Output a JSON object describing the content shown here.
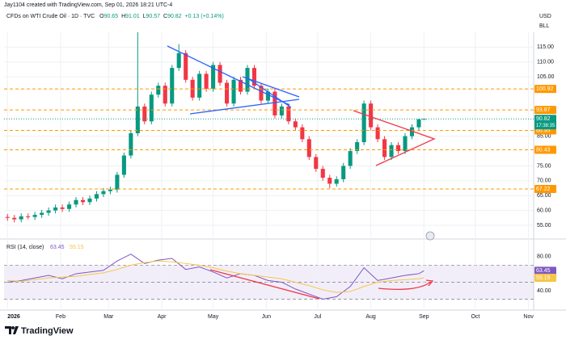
{
  "header": {
    "author": "Jay1104 created with TradingView.com, Sep 01, 2026 18:21 UTC-4",
    "symbol": "CFDs on WTI Crude Oil · 1D · TVC",
    "ohlc_labels": [
      "O",
      "H",
      "L",
      "C"
    ],
    "change": "+0.13 (+0.14%)",
    "currency": "USD",
    "unit": "BLL",
    "countdown": "17:38:35",
    "brand": "TradingView"
  },
  "chart_data": [
    {
      "type": "candlestick",
      "xlim": [
        -2,
        307
      ],
      "ylim": [
        52,
        120
      ],
      "yticks": [
        {
          "value": 55,
          "label": "55.00"
        },
        {
          "value": 60,
          "label": "60.00"
        },
        {
          "value": 65,
          "label": "65.00"
        },
        {
          "value": 70,
          "label": "70.00"
        },
        {
          "value": 75,
          "label": "75.00"
        },
        {
          "value": 85,
          "label": "85.00"
        },
        {
          "value": 105,
          "label": "105.00"
        },
        {
          "value": 110,
          "label": "110.00"
        },
        {
          "value": 115,
          "label": "115.00"
        }
      ],
      "grid": true,
      "up_color": "#089981",
      "down_color": "#f23645",
      "levels": [
        100.92,
        93.87,
        86.95,
        80.43,
        67.22
      ],
      "level_color": "#ff9800",
      "candles": {
        "x": [
          0,
          4,
          8,
          12,
          16,
          20,
          24,
          28,
          32,
          36,
          40,
          44,
          48,
          52,
          56,
          60,
          64,
          68,
          72,
          76,
          80,
          84,
          88,
          92,
          96,
          100,
          104,
          108,
          112,
          116,
          120,
          124,
          128,
          132,
          136,
          140,
          144,
          148,
          152,
          156,
          160,
          164,
          168,
          172,
          176,
          180,
          184,
          188,
          192,
          196,
          200,
          204,
          208,
          212,
          216,
          220,
          224,
          228,
          232,
          236,
          240,
          243
        ],
        "open": [
          57.8,
          57.5,
          57.0,
          58.0,
          57.8,
          58.5,
          59.2,
          60.0,
          61.0,
          60.5,
          62.0,
          63.5,
          62.8,
          64.0,
          65.5,
          66.5,
          67.0,
          72.0,
          78.5,
          86.0,
          95.0,
          90.0,
          99.0,
          102.0,
          96.0,
          108.0,
          113.0,
          104.0,
          98.0,
          106.0,
          101.0,
          109.0,
          103.0,
          96.0,
          104.0,
          100.0,
          108.0,
          102.0,
          97.0,
          100.0,
          92.0,
          95.0,
          90.0,
          88.0,
          84.0,
          78.0,
          74.0,
          71.0,
          69.0,
          70.5,
          75.0,
          80.0,
          83.0,
          96.0,
          88.0,
          84.0,
          78.0,
          82.0,
          80.0,
          85.0,
          88.0,
          90.65
        ],
        "high": [
          58.8,
          58.5,
          59.0,
          59.0,
          59.5,
          60.2,
          61.0,
          62.0,
          62.0,
          63.0,
          64.5,
          64.5,
          65.0,
          66.5,
          67.5,
          68.0,
          73.0,
          79.5,
          87.0,
          120.0,
          96.0,
          100.0,
          103.0,
          103.0,
          109.0,
          116.0,
          114.0,
          105.0,
          107.0,
          107.0,
          110.0,
          110.0,
          104.0,
          105.0,
          105.0,
          109.0,
          109.0,
          103.0,
          101.0,
          101.0,
          96.0,
          96.0,
          91.0,
          89.0,
          85.0,
          79.0,
          75.0,
          72.0,
          71.5,
          76.0,
          81.0,
          84.0,
          97.0,
          97.0,
          89.0,
          85.0,
          83.0,
          83.0,
          86.0,
          89.0,
          90.9,
          91.01
        ],
        "low": [
          56.5,
          56.0,
          56.0,
          57.0,
          56.8,
          57.5,
          58.2,
          59.0,
          59.5,
          59.5,
          61.0,
          61.8,
          61.8,
          63.0,
          64.5,
          65.5,
          66.0,
          71.0,
          77.5,
          85.0,
          89.0,
          89.0,
          98.0,
          95.0,
          95.0,
          107.0,
          103.0,
          97.0,
          97.0,
          100.0,
          100.0,
          102.0,
          95.0,
          95.0,
          99.0,
          99.0,
          101.0,
          96.0,
          96.0,
          91.0,
          91.0,
          89.0,
          87.0,
          83.0,
          77.0,
          73.0,
          70.0,
          67.5,
          68.0,
          69.5,
          74.0,
          79.0,
          82.0,
          87.0,
          83.0,
          77.0,
          77.0,
          79.0,
          79.0,
          84.0,
          87.0,
          90.57
        ],
        "close": [
          57.5,
          57.0,
          58.0,
          57.8,
          58.5,
          59.2,
          60.0,
          61.0,
          60.5,
          62.0,
          63.5,
          62.8,
          64.0,
          65.5,
          66.5,
          67.0,
          72.0,
          78.5,
          86.0,
          95.0,
          90.0,
          99.0,
          102.0,
          96.0,
          108.0,
          113.0,
          104.0,
          98.0,
          106.0,
          101.0,
          109.0,
          103.0,
          96.0,
          104.0,
          100.0,
          108.0,
          102.0,
          97.0,
          100.0,
          92.0,
          95.0,
          90.0,
          88.0,
          84.0,
          78.0,
          74.0,
          71.0,
          69.0,
          70.5,
          75.0,
          80.0,
          83.0,
          96.0,
          88.0,
          84.0,
          78.0,
          82.0,
          80.0,
          85.0,
          88.0,
          90.69,
          90.82
        ]
      }
    },
    {
      "type": "line",
      "title": "RSI (14, close)",
      "xlim": [
        -2,
        307
      ],
      "ylim": [
        21,
        97
      ],
      "xticks": [
        {
          "value": 0,
          "label": "2026"
        },
        {
          "value": 31,
          "label": "Feb"
        },
        {
          "value": 59,
          "label": "Mar"
        },
        {
          "value": 90,
          "label": "Apr"
        },
        {
          "value": 120,
          "label": "May"
        },
        {
          "value": 151,
          "label": "Jun"
        },
        {
          "value": 181,
          "label": "Jul"
        },
        {
          "value": 212,
          "label": "Aug"
        },
        {
          "value": 243,
          "label": "Sep"
        },
        {
          "value": 273,
          "label": "Oct"
        },
        {
          "value": 304,
          "label": "Nov"
        }
      ],
      "yticks": [
        {
          "value": 80,
          "label": "80.00"
        },
        {
          "value": 40,
          "label": "40.00"
        }
      ],
      "levels": [
        70,
        50,
        30
      ],
      "band_color": "#7e57c2",
      "x": [
        0,
        8,
        16,
        24,
        32,
        40,
        48,
        56,
        64,
        72,
        80,
        88,
        96,
        104,
        112,
        120,
        128,
        136,
        144,
        152,
        160,
        168,
        176,
        184,
        192,
        200,
        208,
        216,
        224,
        232,
        240,
        243
      ],
      "series": [
        {
          "color": "#7e57c2",
          "values": [
            50,
            52,
            55,
            58,
            54,
            60,
            62,
            64,
            75,
            83,
            72,
            76,
            78,
            65,
            68,
            62,
            55,
            60,
            58,
            52,
            50,
            42,
            36,
            30,
            33,
            45,
            67,
            52,
            55,
            58,
            60,
            63.45
          ]
        },
        {
          "color": "#f7c548",
          "values": [
            52,
            51,
            53,
            55,
            56,
            57,
            59,
            61,
            65,
            70,
            73,
            75,
            74,
            72,
            70,
            67,
            63,
            60,
            58,
            56,
            54,
            50,
            46,
            41,
            38,
            39,
            45,
            50,
            52,
            53,
            54,
            55.15
          ]
        }
      ]
    }
  ]
}
